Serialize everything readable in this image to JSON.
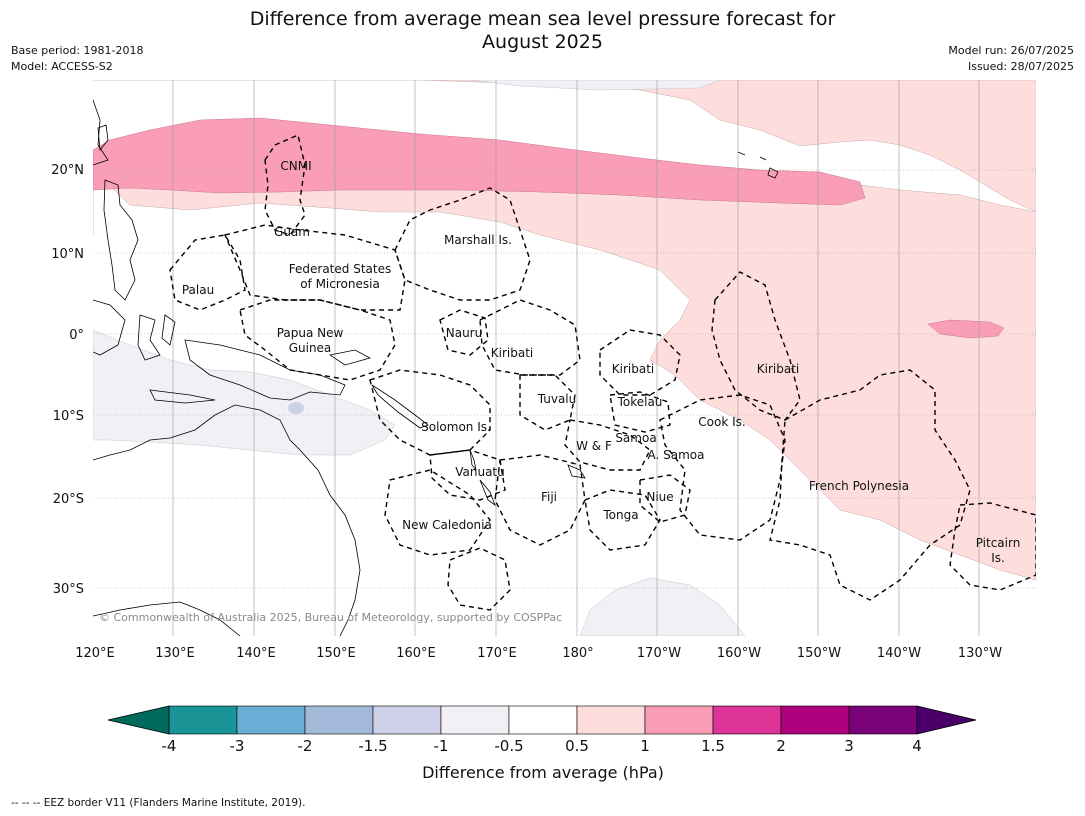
{
  "title": {
    "line1": "Difference from average mean sea level pressure forecast for",
    "line2": "August 2025"
  },
  "meta": {
    "base_period": "Base period: 1981-2018",
    "model": "Model: ACCESS-S2",
    "model_run": "Model run: 26/07/2025",
    "issued": "Issued: 28/07/2025"
  },
  "map": {
    "latitude_labels": [
      "20°N",
      "10°N",
      "0°",
      "10°S",
      "20°S",
      "30°S"
    ],
    "longitude_labels": [
      "120°E",
      "130°E",
      "140°E",
      "150°E",
      "160°E",
      "170°E",
      "180°",
      "170°W",
      "160°W",
      "150°W",
      "140°W",
      "130°W"
    ],
    "places": {
      "cnmi": "CNMI",
      "guam": "Guam",
      "palau": "Palau",
      "fsm_1": "Federated States",
      "fsm_2": "of Micronesia",
      "marshall": "Marshall Is.",
      "png_1": "Papua New",
      "png_2": "Guinea",
      "nauru": "Nauru",
      "kiribati_west": "Kiribati",
      "kiribati_central": "Kiribati",
      "kiribati_east": "Kiribati",
      "tuvalu": "Tuvalu",
      "tokelau": "Tokelau",
      "solomon": "Solomon Is.",
      "wf": "W & F",
      "samoa": "Samoa",
      "asamoa": "A. Samoa",
      "cook": "Cook Is.",
      "vanuatu": "Vanuatu",
      "fiji": "Fiji",
      "niue": "Niue",
      "tonga": "Tonga",
      "new_caledonia": "New Caledonia",
      "french_polynesia": "French Polynesia",
      "pitcairn_1": "Pitcairn",
      "pitcairn_2": "Is."
    },
    "copyright": "© Commonwealth of Australia 2025, Bureau of Meteorology, supported by COSPPac"
  },
  "colorbar": {
    "label": "Difference from average (hPa)",
    "ticks": [
      "-4",
      "-3",
      "-2",
      "-1.5",
      "-1",
      "-0.5",
      "0.5",
      "1",
      "1.5",
      "2",
      "3",
      "4"
    ],
    "colors": {
      "below_min": "#006a5c",
      "bins": [
        "#1a9496",
        "#6aaed6",
        "#a4b8da",
        "#cdd0e6",
        "#f2eff5",
        "#ffffff",
        "#fddedd",
        "#f99eb6",
        "#dc3497",
        "#ad017e",
        "#7a0177"
      ],
      "above_max": "#49006a"
    }
  },
  "footer": {
    "legend": "--  --  -- EEZ border V11 (Flanders Marine Institute, 2019)."
  }
}
